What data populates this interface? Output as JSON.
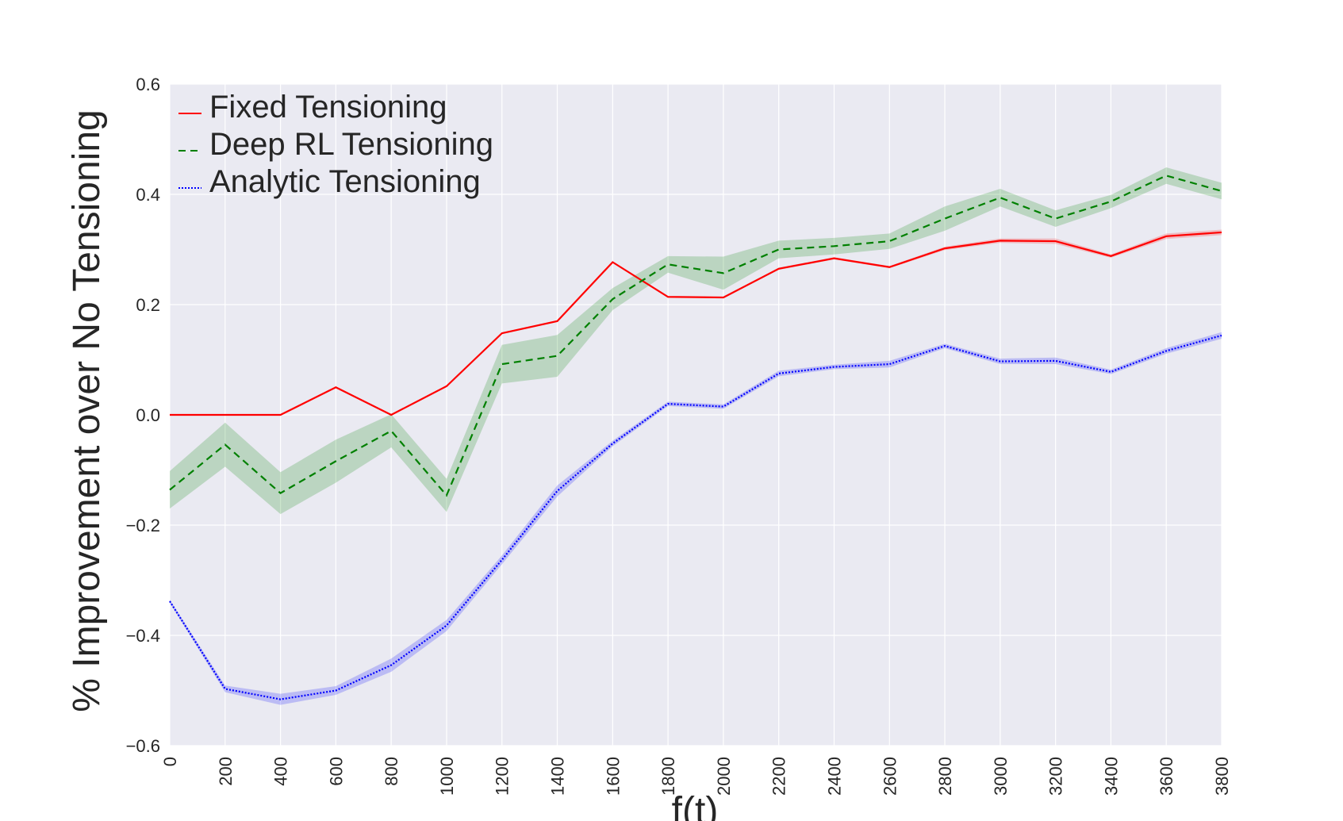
{
  "chart_data": {
    "type": "line",
    "title": "",
    "xlabel": "f(t)",
    "ylabel": "% Improvement over No Tensioning",
    "x": [
      0,
      200,
      400,
      600,
      800,
      1000,
      1200,
      1400,
      1600,
      1800,
      2000,
      2200,
      2400,
      2600,
      2800,
      3000,
      3200,
      3400,
      3600,
      3800
    ],
    "xticks": [
      "0",
      "200",
      "400",
      "600",
      "800",
      "1000",
      "1200",
      "1400",
      "1600",
      "1800",
      "2000",
      "2200",
      "2400",
      "2600",
      "2800",
      "3000",
      "3200",
      "3400",
      "3600",
      "3800"
    ],
    "yticks": [
      "0.6",
      "0.4",
      "0.2",
      "0.0",
      "−0.2",
      "−0.4",
      "−0.6"
    ],
    "ytick_values": [
      0.6,
      0.4,
      0.2,
      0.0,
      -0.2,
      -0.4,
      -0.6
    ],
    "xlim": [
      0,
      3800
    ],
    "ylim": [
      -0.6,
      0.6
    ],
    "grid": true,
    "legend_position": "top-left",
    "background_color": "#eaeaf2",
    "series": [
      {
        "name": "Fixed Tensioning",
        "color": "#ff0000",
        "dash": "solid",
        "values": [
          0.0,
          0.0,
          0.0,
          0.05,
          0.0,
          0.052,
          0.148,
          0.17,
          0.277,
          0.214,
          0.213,
          0.265,
          0.284,
          0.268,
          0.302,
          0.316,
          0.315,
          0.288,
          0.324,
          0.331
        ],
        "band": [
          0.0,
          0.0,
          0.0,
          0.0,
          0.0,
          0.0,
          0.0,
          0.0,
          0.0,
          0.0,
          0.0,
          0.002,
          0.002,
          0.002,
          0.003,
          0.004,
          0.005,
          0.003,
          0.005,
          0.005
        ]
      },
      {
        "name": "Deep RL Tensioning",
        "color": "#008000",
        "dash": "dashed",
        "values": [
          -0.136,
          -0.054,
          -0.142,
          -0.084,
          -0.029,
          -0.146,
          0.092,
          0.107,
          0.21,
          0.273,
          0.257,
          0.3,
          0.306,
          0.315,
          0.356,
          0.394,
          0.356,
          0.387,
          0.434,
          0.406
        ],
        "band": [
          0.034,
          0.04,
          0.038,
          0.039,
          0.03,
          0.03,
          0.035,
          0.038,
          0.02,
          0.015,
          0.03,
          0.016,
          0.015,
          0.014,
          0.022,
          0.016,
          0.015,
          0.012,
          0.015,
          0.015
        ]
      },
      {
        "name": "Analytic Tensioning",
        "color": "#0000ff",
        "dash": "dotted",
        "values": [
          -0.338,
          -0.497,
          -0.516,
          -0.5,
          -0.454,
          -0.382,
          -0.263,
          -0.138,
          -0.052,
          0.02,
          0.015,
          0.075,
          0.087,
          0.092,
          0.125,
          0.097,
          0.098,
          0.078,
          0.116,
          0.144
        ],
        "band": [
          0.003,
          0.006,
          0.01,
          0.008,
          0.012,
          0.01,
          0.008,
          0.01,
          0.005,
          0.004,
          0.004,
          0.005,
          0.004,
          0.006,
          0.004,
          0.005,
          0.006,
          0.004,
          0.005,
          0.006
        ]
      }
    ]
  }
}
